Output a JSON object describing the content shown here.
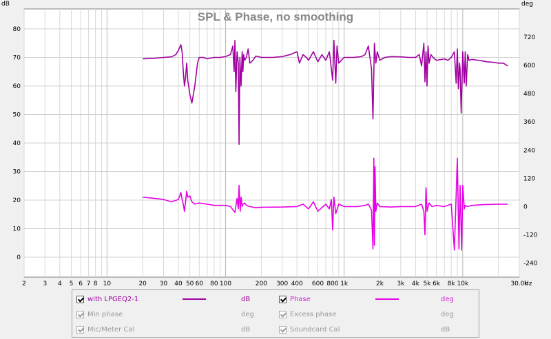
{
  "chart_data": {
    "type": "line",
    "title": "SPL & Phase, no smoothing",
    "xlabel": "Hz",
    "ylabel": "dB",
    "y2label": "deg",
    "x_scale": "log",
    "xlim": [
      2,
      30000
    ],
    "ylim": [
      -7,
      87
    ],
    "y2lim": [
      -300,
      840
    ],
    "x_ticks": [
      2,
      3,
      4,
      5,
      6,
      7,
      8,
      10,
      20,
      30,
      40,
      50,
      60,
      80,
      100,
      200,
      300,
      400,
      600,
      800,
      1000,
      2000,
      3000,
      4000,
      5000,
      6000,
      8000,
      10000,
      30000
    ],
    "x_tick_labels": [
      "2",
      "3",
      "4",
      "5",
      "6",
      "7",
      "8",
      "10",
      "20",
      "30",
      "40",
      "50",
      "60",
      "80",
      "100",
      "200",
      "300",
      "400",
      "600",
      "800",
      "1k",
      "2k",
      "3k",
      "4k",
      "5k",
      "6k",
      "8k",
      "10k",
      "30.0k"
    ],
    "y_ticks": [
      0,
      10,
      20,
      30,
      40,
      50,
      60,
      70,
      80
    ],
    "y2_ticks": [
      -240,
      -120,
      0,
      120,
      240,
      360,
      480,
      600,
      720
    ],
    "grid": true,
    "series": [
      {
        "name": "with LPGEQ2-1",
        "unit": "dB",
        "axis": "left",
        "color": "#a000a0",
        "x": [
          20,
          25,
          30,
          35,
          38,
          40,
          42,
          43,
          44,
          45,
          46,
          47,
          48,
          50,
          52,
          55,
          58,
          60,
          65,
          70,
          80,
          90,
          100,
          110,
          115,
          118,
          120,
          122,
          125,
          128,
          130,
          132,
          135,
          138,
          140,
          142,
          145,
          150,
          155,
          160,
          170,
          180,
          200,
          250,
          300,
          350,
          400,
          420,
          450,
          480,
          500,
          550,
          600,
          650,
          700,
          750,
          780,
          800,
          820,
          850,
          870,
          900,
          1000,
          1200,
          1400,
          1500,
          1600,
          1700,
          1750,
          1800,
          1850,
          1900,
          2000,
          2200,
          2500,
          3000,
          3500,
          4000,
          4300,
          4500,
          4700,
          4800,
          4900,
          5000,
          5100,
          5200,
          5400,
          5600,
          6000,
          7000,
          7500,
          8000,
          8500,
          8800,
          9000,
          9200,
          9400,
          9500,
          9700,
          10000,
          10300,
          10500,
          10700,
          11000,
          11300,
          12000,
          14000,
          16000,
          18000,
          20000,
          22000,
          24000
        ],
        "values": [
          69.5,
          69.7,
          70,
          70.2,
          71,
          72.5,
          74.5,
          72,
          65,
          60,
          63,
          68,
          62,
          57,
          54,
          60,
          68,
          70,
          70,
          69.5,
          70,
          70,
          70.3,
          71,
          74,
          65,
          76,
          58,
          72,
          68,
          39.5,
          70,
          60,
          72,
          65,
          71,
          69,
          70,
          73,
          68,
          69,
          70.5,
          70,
          70,
          70.3,
          71,
          72,
          68,
          71,
          70,
          69,
          72,
          68.5,
          71,
          69,
          72,
          66,
          62,
          76,
          61,
          74,
          68,
          70,
          70,
          70.3,
          71,
          74,
          66,
          48.5,
          75,
          68,
          72,
          69,
          70,
          70.3,
          70.2,
          70,
          70,
          71,
          67,
          75,
          61.5,
          72,
          60,
          74,
          68,
          71,
          70,
          69,
          69.5,
          69,
          70,
          72,
          61,
          73,
          59,
          68,
          66,
          50.5,
          72,
          61,
          72,
          60,
          71,
          69,
          69.3,
          68.9,
          68.5,
          68.3,
          68,
          68,
          67
        ]
      },
      {
        "name": "Phase",
        "unit": "deg",
        "axis": "right",
        "color": "#e600e6",
        "x": [
          20,
          25,
          30,
          35,
          40,
          42,
          43,
          44,
          45,
          46,
          47,
          48,
          50,
          52,
          55,
          60,
          70,
          80,
          100,
          110,
          120,
          125,
          128,
          130,
          133,
          135,
          138,
          140,
          145,
          150,
          160,
          180,
          200,
          300,
          400,
          450,
          500,
          550,
          600,
          700,
          750,
          780,
          800,
          820,
          850,
          900,
          1000,
          1300,
          1500,
          1600,
          1700,
          1750,
          1780,
          1800,
          1820,
          1850,
          1900,
          2000,
          2500,
          3000,
          4000,
          4500,
          4700,
          4800,
          4900,
          5000,
          5200,
          5500,
          6000,
          7000,
          8000,
          8500,
          9000,
          9300,
          9500,
          9800,
          10000,
          10300,
          10500,
          11000,
          12000,
          15000,
          20000,
          24000
        ],
        "values": [
          40,
          35,
          30,
          20,
          30,
          60,
          30,
          10,
          -20,
          20,
          65,
          40,
          45,
          20,
          10,
          15,
          10,
          5,
          5,
          0,
          -25,
          35,
          -10,
          90,
          -20,
          40,
          0,
          10,
          15,
          5,
          0,
          -5,
          -3,
          -2,
          0,
          10,
          -10,
          20,
          -20,
          10,
          -10,
          30,
          -100,
          40,
          -30,
          10,
          0,
          0,
          5,
          10,
          -15,
          -180,
          205,
          -165,
          170,
          -20,
          15,
          0,
          -2,
          0,
          0,
          10,
          -20,
          -120,
          80,
          -20,
          15,
          0,
          5,
          0,
          10,
          -185,
          205,
          -180,
          90,
          -185,
          90,
          -10,
          5,
          0,
          5,
          8,
          10,
          10
        ]
      }
    ]
  },
  "legend": {
    "rows": [
      {
        "left": {
          "label": "with LPGEQ2-1",
          "unit": "dB",
          "checked": true,
          "enabled": true
        },
        "right": {
          "label": "Phase",
          "unit": "deg",
          "checked": true,
          "enabled": true
        }
      },
      {
        "left": {
          "label": "Min phase",
          "unit": "deg",
          "checked": true,
          "enabled": false
        },
        "right": {
          "label": "Excess phase",
          "unit": "deg",
          "checked": true,
          "enabled": false
        }
      },
      {
        "left": {
          "label": "Mic/Meter Cal",
          "unit": "dB",
          "checked": true,
          "enabled": false
        },
        "right": {
          "label": "Soundcard Cal",
          "unit": "dB",
          "checked": true,
          "enabled": false
        }
      }
    ]
  }
}
